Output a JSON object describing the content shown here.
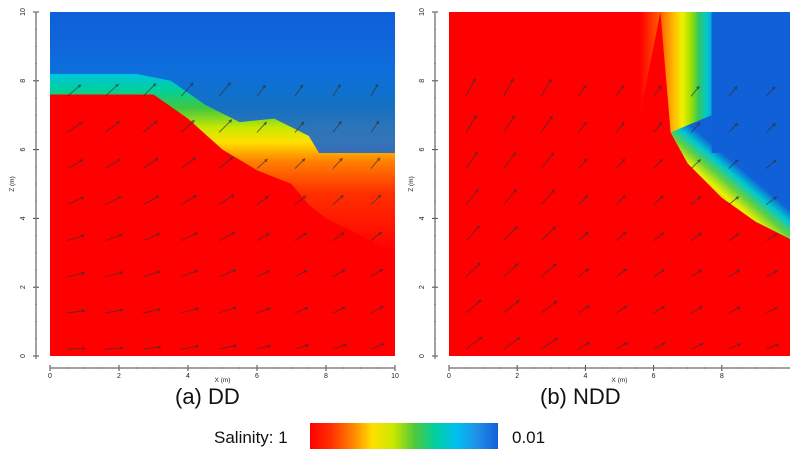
{
  "figure": {
    "captions": [
      "(a) DD",
      "(b) NDD"
    ],
    "colorbar": {
      "label_left": "Salinity: 1",
      "label_right": "0.01",
      "stops": [
        "#ff0000",
        "#ff3000",
        "#ff8000",
        "#ffe000",
        "#c8e800",
        "#50c83c",
        "#00d0a0",
        "#00c0f0",
        "#2090e8",
        "#1060d8"
      ]
    }
  },
  "chart_data": [
    {
      "type": "heatmap",
      "title": "(a) DD",
      "xlabel": "X (m)",
      "ylabel": "Z (m)",
      "xlim": [
        0,
        10
      ],
      "ylim": [
        0,
        10
      ],
      "x_ticks": [
        "0",
        "2",
        "4",
        "6",
        "8",
        "10"
      ],
      "y_ticks": [
        "0",
        "2",
        "4",
        "6",
        "8",
        "10"
      ],
      "field": "salinity",
      "salinity_range": [
        0.01,
        1
      ],
      "interface": {
        "x": [
          0,
          3.0,
          4.0,
          5.0,
          6.0,
          7.0,
          7.5,
          8.0,
          9.0,
          10.0
        ],
        "z": [
          7.6,
          7.6,
          6.9,
          6.0,
          5.4,
          5.0,
          4.4,
          4.0,
          3.5,
          3.0
        ]
      },
      "top_boundary": {
        "x": [
          0,
          2.5,
          3.5,
          4.5,
          5.5,
          6.5,
          7.5,
          7.8,
          10.0
        ],
        "z": [
          8.2,
          8.2,
          8.0,
          7.3,
          6.8,
          6.9,
          6.4,
          5.9,
          5.9
        ]
      },
      "velocity_vectors": true
    },
    {
      "type": "heatmap",
      "title": "(b) NDD",
      "xlabel": "X (m)",
      "ylabel": "Z (m)",
      "xlim": [
        0,
        10
      ],
      "ylim": [
        0,
        10
      ],
      "x_ticks": [
        "0",
        "2",
        "4",
        "6",
        "8"
      ],
      "y_ticks": [
        "0",
        "2",
        "4",
        "6",
        "8",
        "10"
      ],
      "field": "salinity",
      "salinity_range": [
        0.01,
        1
      ],
      "interface": {
        "x": [
          0,
          6.2,
          6.5,
          7.0,
          8.0,
          9.0,
          10.0
        ],
        "z": [
          10,
          10,
          6.5,
          5.6,
          4.6,
          3.9,
          3.4
        ]
      },
      "top_boundary": {
        "x": [
          0,
          7.7,
          7.7,
          10.0
        ],
        "z": [
          10,
          10,
          5.9,
          5.9
        ]
      },
      "velocity_vectors": true
    }
  ]
}
